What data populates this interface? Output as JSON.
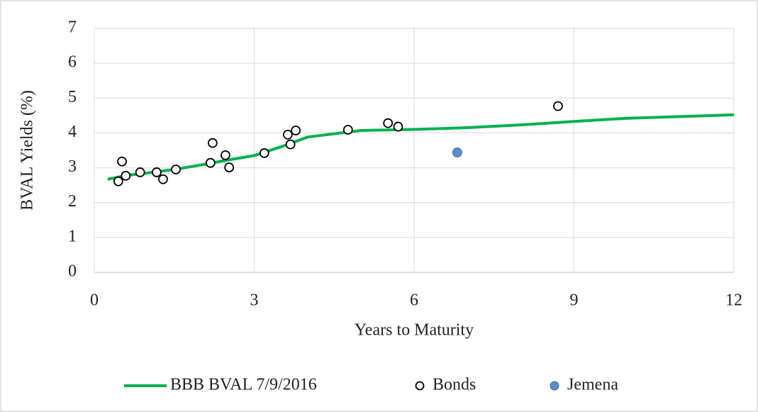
{
  "chart_data": {
    "type": "scatter",
    "x_label": "Years to Maturity",
    "y_label": "BVAL Yields (%)",
    "xlim": [
      0,
      12
    ],
    "xticks": [
      0,
      3,
      6,
      9,
      12
    ],
    "ylim": [
      0,
      7
    ],
    "yticks": [
      0,
      1,
      2,
      3,
      4,
      5,
      6,
      7
    ],
    "grid": true,
    "legend": "bottom",
    "series": [
      {
        "name": "BBB BVAL 7/9/2016",
        "color": "#00b050",
        "mode": "line",
        "x": [
          0.25,
          0.6,
          1,
          1.5,
          2,
          2.5,
          3,
          3.5,
          4,
          5,
          6,
          7,
          8,
          9,
          10,
          11,
          12
        ],
        "values": [
          2.67,
          2.78,
          2.85,
          2.95,
          3.08,
          3.22,
          3.35,
          3.6,
          3.88,
          4.07,
          4.1,
          4.15,
          4.23,
          4.33,
          4.42,
          4.47,
          4.52
        ]
      },
      {
        "name": "Bonds",
        "color": "#000000",
        "mode": "hollow",
        "x": [
          0.45,
          0.52,
          0.59,
          0.86,
          1.17,
          1.29,
          1.53,
          2.18,
          2.22,
          2.46,
          2.53,
          3.19,
          3.63,
          3.68,
          3.78,
          4.76,
          5.51,
          5.7,
          8.7
        ],
        "values": [
          2.61,
          3.18,
          2.77,
          2.87,
          2.87,
          2.67,
          2.95,
          3.14,
          3.71,
          3.36,
          3.01,
          3.42,
          3.95,
          3.67,
          4.07,
          4.09,
          4.28,
          4.18,
          4.77
        ]
      },
      {
        "name": "Jemena",
        "color": "#5b8bd0",
        "mode": "filled",
        "x": [
          6.81
        ],
        "values": [
          3.44
        ]
      }
    ]
  }
}
